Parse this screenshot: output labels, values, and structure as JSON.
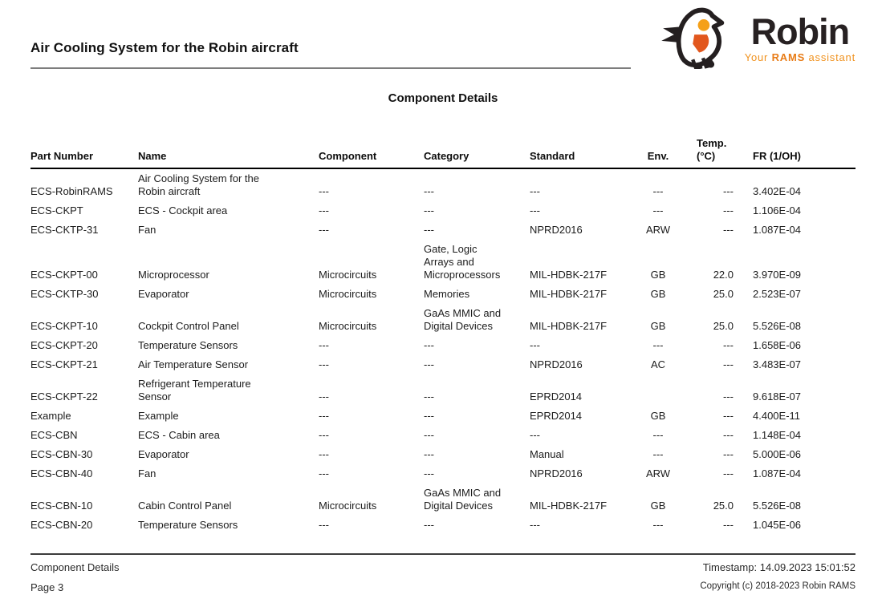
{
  "page": {
    "title": "Air Cooling System for the Robin aircraft",
    "section_heading": "Component Details"
  },
  "logo": {
    "brand": "Robin",
    "tagline_prefix": "Your ",
    "tagline_bold": "RAMS",
    "tagline_suffix": " assistant",
    "colors": {
      "brand_dark": "#272122",
      "tagline_orange": "#F0921F",
      "eye_amber": "#F5A019",
      "belly_orange": "#E2571D"
    }
  },
  "table": {
    "headers": [
      "Part Number",
      "Name",
      "Component",
      "Category",
      "Standard",
      "Env.",
      "Temp. (°C)",
      "FR (1/OH)"
    ],
    "rows": [
      [
        "ECS-RobinRAMS",
        "Air Cooling System for the Robin aircraft",
        "---",
        "---",
        "---",
        "---",
        "---",
        "3.402E-04"
      ],
      [
        "ECS-CKPT",
        "ECS - Cockpit area",
        "---",
        "---",
        "---",
        "---",
        "---",
        "1.106E-04"
      ],
      [
        "ECS-CKTP-31",
        "Fan",
        "---",
        "---",
        "NPRD2016",
        "ARW",
        "---",
        "1.087E-04"
      ],
      [
        "ECS-CKPT-00",
        "Microprocessor",
        "Microcircuits",
        "Gate, Logic Arrays and Microprocessors",
        "MIL-HDBK-217F",
        "GB",
        "22.0",
        "3.970E-09"
      ],
      [
        "ECS-CKTP-30",
        "Evaporator",
        "Microcircuits",
        "Memories",
        "MIL-HDBK-217F",
        "GB",
        "25.0",
        "2.523E-07"
      ],
      [
        "ECS-CKPT-10",
        "Cockpit Control Panel",
        "Microcircuits",
        "GaAs MMIC and Digital Devices",
        "MIL-HDBK-217F",
        "GB",
        "25.0",
        "5.526E-08"
      ],
      [
        "ECS-CKPT-20",
        "Temperature Sensors",
        "---",
        "---",
        "---",
        "---",
        "---",
        "1.658E-06"
      ],
      [
        "ECS-CKPT-21",
        "Air Temperature Sensor",
        "---",
        "---",
        "NPRD2016",
        "AC",
        "---",
        "3.483E-07"
      ],
      [
        "ECS-CKPT-22",
        "Refrigerant Temperature Sensor",
        "---",
        "---",
        "EPRD2014",
        "",
        "---",
        "9.618E-07"
      ],
      [
        "Example",
        "Example",
        "---",
        "---",
        "EPRD2014",
        "GB",
        "---",
        "4.400E-11"
      ],
      [
        "ECS-CBN",
        "ECS - Cabin area",
        "---",
        "---",
        "---",
        "---",
        "---",
        "1.148E-04"
      ],
      [
        "ECS-CBN-30",
        "Evaporator",
        "---",
        "---",
        "Manual",
        "---",
        "---",
        "5.000E-06"
      ],
      [
        "ECS-CBN-40",
        "Fan",
        "---",
        "---",
        "NPRD2016",
        "ARW",
        "---",
        "1.087E-04"
      ],
      [
        "ECS-CBN-10",
        "Cabin Control Panel",
        "Microcircuits",
        "GaAs MMIC and Digital Devices",
        "MIL-HDBK-217F",
        "GB",
        "25.0",
        "5.526E-08"
      ],
      [
        "ECS-CBN-20",
        "Temperature Sensors",
        "---",
        "---",
        "---",
        "---",
        "---",
        "1.045E-06"
      ]
    ]
  },
  "footer": {
    "section_label": "Component Details",
    "page_number": "Page 3",
    "timestamp": "Timestamp: 14.09.2023 15:01:52",
    "copyright": "Copyright (c) 2018-2023 Robin RAMS"
  }
}
